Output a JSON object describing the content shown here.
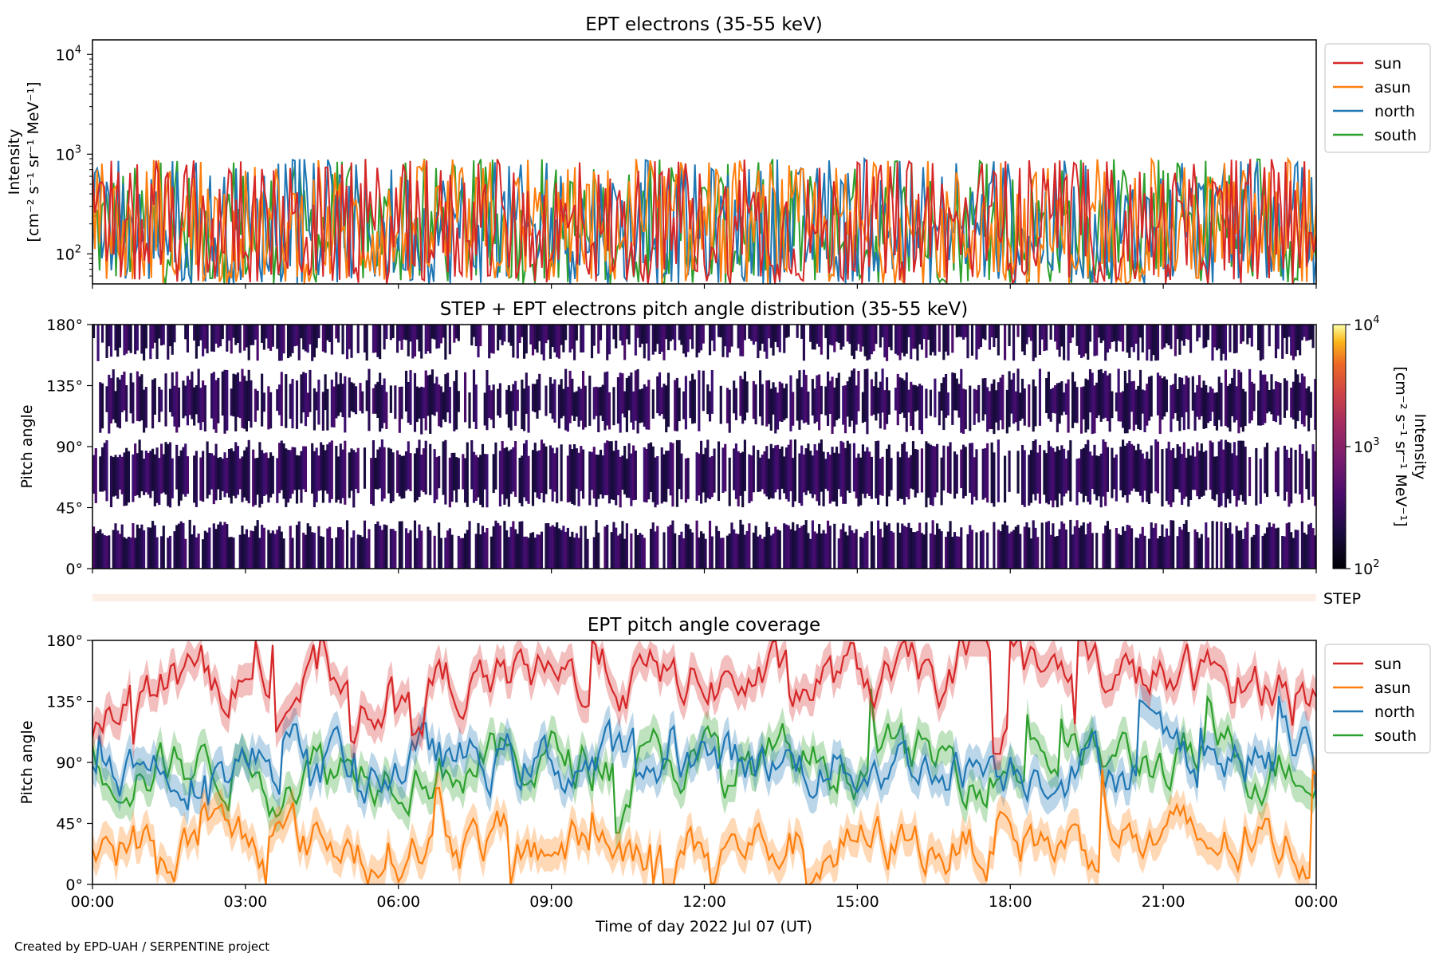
{
  "footer": "Created by EPD-UAH / SERPENTINE project",
  "x_axis": {
    "label": "Time of day 2022 Jul 07 (UT)",
    "ticks": [
      "00:00",
      "03:00",
      "06:00",
      "09:00",
      "12:00",
      "15:00",
      "18:00",
      "21:00",
      "00:00"
    ],
    "range_hours": [
      0,
      24
    ]
  },
  "colors": {
    "sun": "#d62728",
    "asun": "#ff7f0e",
    "north": "#1f77b4",
    "south": "#2ca02c"
  },
  "step_label": "STEP",
  "chart_data": [
    {
      "type": "line",
      "title": "EPT electrons (35-55 keV)",
      "ylabel_line1": "Intensity",
      "ylabel_line2": "[cm⁻² s⁻¹ sr⁻¹ MeV⁻¹]",
      "yscale": "log",
      "ylim": [
        50,
        14000
      ],
      "yticks": [
        {
          "base": "10",
          "exp": "2",
          "value": 100
        },
        {
          "base": "10",
          "exp": "3",
          "value": 1000
        },
        {
          "base": "10",
          "exp": "4",
          "value": 10000
        }
      ],
      "legend": [
        "sun",
        "asun",
        "north",
        "south"
      ],
      "legend_position": "outside-right-top",
      "series_summary": "noisy time series fluctuating roughly between 50 and 800 over the whole day",
      "typical_range": [
        50,
        800
      ]
    },
    {
      "type": "heatmap",
      "title": "STEP + EPT electrons pitch angle distribution (35-55 keV)",
      "ylabel": "Pitch angle",
      "yticks": [
        "0°",
        "45°",
        "90°",
        "135°",
        "180°"
      ],
      "ylim": [
        0,
        180
      ],
      "colorbar": {
        "label_line1": "Intensity",
        "label_line2": "[cm⁻² s⁻¹ sr⁻¹ MeV⁻¹]",
        "ticks": [
          {
            "base": "10",
            "exp": "2"
          },
          {
            "base": "10",
            "exp": "3"
          },
          {
            "base": "10",
            "exp": "4"
          }
        ],
        "range": [
          100,
          10000
        ],
        "colormap": "inferno"
      }
    },
    {
      "type": "line",
      "title": "EPT pitch angle coverage",
      "ylabel": "Pitch angle",
      "yticks": [
        "0°",
        "45°",
        "90°",
        "135°",
        "180°"
      ],
      "ylim": [
        0,
        180
      ],
      "legend": [
        "sun",
        "asun",
        "north",
        "south"
      ],
      "legend_position": "outside-right-top",
      "typical_levels_deg": {
        "sun": 150,
        "asun": 30,
        "north": 90,
        "south": 90
      }
    }
  ]
}
